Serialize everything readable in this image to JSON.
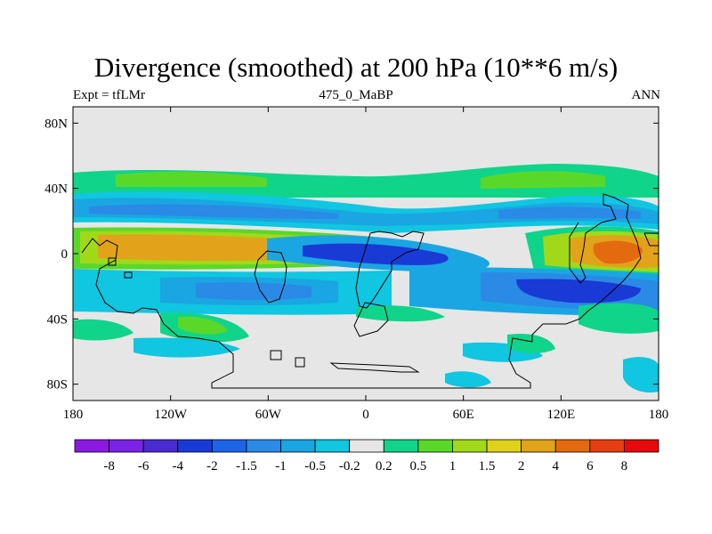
{
  "chart_data": {
    "type": "heatmap",
    "title": "Divergence (smoothed) at 200 hPa (10**6 m/s)",
    "subtitle_left": "Expt = tfLMr",
    "subtitle_center": "475_0_MaBP",
    "subtitle_right": "ANN",
    "x_axis": {
      "range": [
        -180,
        180
      ],
      "ticks": [
        "180",
        "120W",
        "60W",
        "0",
        "60E",
        "120E",
        "180"
      ]
    },
    "y_axis": {
      "range": [
        -90,
        90
      ],
      "ticks": [
        "80N",
        "40N",
        "0",
        "40S",
        "80S"
      ]
    },
    "colorbar": {
      "labels": [
        "-8",
        "-6",
        "-4",
        "-2",
        "-1.5",
        "-1",
        "-0.5",
        "-0.2",
        "0.2",
        "0.5",
        "1",
        "1.5",
        "2",
        "4",
        "6",
        "8"
      ],
      "colors": [
        "#8a1ae0",
        "#7a22e6",
        "#4a2ad2",
        "#1a3ad6",
        "#1e64e6",
        "#2a8ae6",
        "#1aa6e2",
        "#10c6e0",
        "#e6e6e6",
        "#10d48a",
        "#5ad82a",
        "#a2d81a",
        "#e0d21a",
        "#e2a21a",
        "#e46a10",
        "#e63e10",
        "#e60a0a"
      ]
    }
  }
}
